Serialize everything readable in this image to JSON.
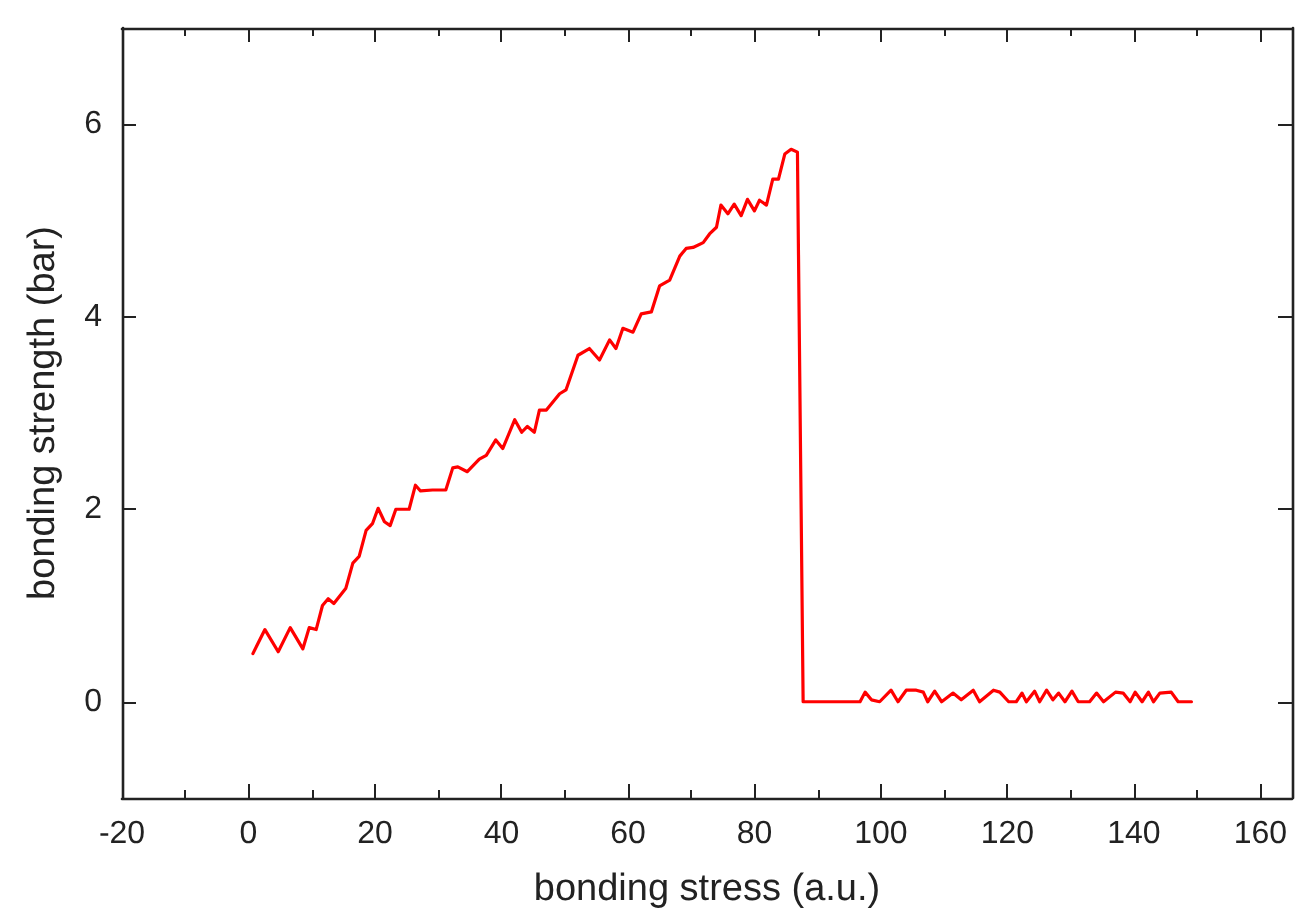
{
  "chart_data": {
    "type": "line",
    "xlabel": "bonding stress (a.u.)",
    "ylabel": "bonding strength (bar)",
    "xlim": [
      -20,
      165
    ],
    "xticks": [
      -20,
      0,
      20,
      40,
      60,
      80,
      100,
      120,
      140,
      160
    ],
    "ylim": [
      -1,
      7
    ],
    "yticks": [
      0,
      2,
      4,
      6
    ],
    "marker": "none",
    "line_style": "solid",
    "series": [
      {
        "color": "#ff0000",
        "x": [
          0.7,
          2.6,
          4.7,
          6.6,
          8.6,
          9.6,
          10.7,
          11.7,
          12.6,
          13.5,
          15.4,
          16.5,
          17.5,
          18.6,
          19.6,
          20.5,
          21.5,
          22.4,
          23.3,
          25.4,
          26.4,
          27.2,
          29.1,
          31.2,
          32.3,
          33.1,
          34.6,
          36.5,
          37.6,
          39.1,
          40.2,
          42.1,
          43.2,
          44.1,
          45.2,
          46.0,
          47.1,
          49.2,
          50.2,
          52.1,
          53.9,
          55.5,
          57.1,
          58.1,
          59.2,
          60.8,
          62.1,
          63.7,
          65.0,
          66.6,
          68.2,
          69.2,
          70.3,
          71.9,
          72.9,
          74.0,
          74.7,
          75.8,
          76.8,
          77.9,
          78.9,
          80.0,
          80.8,
          81.9,
          82.9,
          83.8,
          84.8,
          85.8,
          86.8,
          87.7,
          96.7,
          97.5,
          98.5,
          99.8,
          101.6,
          102.7,
          104.0,
          105.6,
          106.7,
          107.4,
          108.5,
          109.6,
          111.4,
          112.7,
          114.6,
          115.6,
          117.8,
          118.8,
          120.2,
          121.4,
          122.3,
          123.0,
          124.3,
          125.1,
          126.2,
          127.2,
          128.1,
          129.1,
          130.2,
          131.2,
          133.0,
          134.1,
          135.2,
          137.1,
          138.3,
          139.4,
          140.2,
          141.3,
          142.3,
          143.1,
          144.1,
          145.9,
          147.0,
          149.1
        ],
        "values": [
          0.5,
          0.75,
          0.52,
          0.77,
          0.55,
          0.77,
          0.75,
          1.0,
          1.07,
          1.02,
          1.18,
          1.44,
          1.51,
          1.78,
          1.85,
          2.01,
          1.87,
          1.83,
          2.0,
          2.0,
          2.25,
          2.19,
          2.2,
          2.2,
          2.43,
          2.44,
          2.39,
          2.52,
          2.56,
          2.72,
          2.63,
          2.93,
          2.8,
          2.86,
          2.8,
          3.03,
          3.03,
          3.2,
          3.24,
          3.6,
          3.67,
          3.55,
          3.76,
          3.67,
          3.88,
          3.84,
          4.03,
          4.05,
          4.32,
          4.38,
          4.63,
          4.71,
          4.72,
          4.77,
          4.86,
          4.93,
          5.16,
          5.07,
          5.17,
          5.05,
          5.22,
          5.1,
          5.21,
          5.16,
          5.43,
          5.43,
          5.69,
          5.74,
          5.71,
          0,
          0,
          0.1,
          0.02,
          0,
          0.12,
          0,
          0.12,
          0.12,
          0.1,
          0,
          0.11,
          0,
          0.09,
          0.02,
          0.12,
          0,
          0.12,
          0.1,
          0,
          0,
          0.09,
          0,
          0.11,
          0,
          0.12,
          0.02,
          0.09,
          0,
          0.11,
          0,
          0,
          0.09,
          0,
          0.1,
          0.09,
          0,
          0.1,
          0,
          0.1,
          0,
          0.09,
          0.1,
          0,
          0
        ]
      }
    ]
  }
}
